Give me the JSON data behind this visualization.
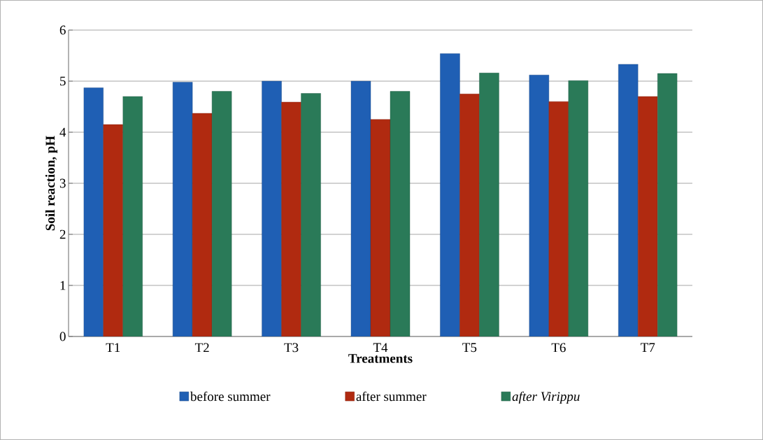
{
  "chart_data": {
    "type": "bar",
    "xlabel": "Treatments",
    "ylabel": "Soil reaction, pH",
    "categories": [
      "T1",
      "T2",
      "T3",
      "T4",
      "T5",
      "T6",
      "T7"
    ],
    "series": [
      {
        "name": "before summer",
        "color": "#1f5fb4",
        "values": [
          4.87,
          4.98,
          5.0,
          5.0,
          5.54,
          5.12,
          5.33
        ]
      },
      {
        "name": "after summer",
        "color": "#b02a10",
        "values": [
          4.15,
          4.37,
          4.59,
          4.25,
          4.75,
          4.6,
          4.7
        ]
      },
      {
        "name": "after Virippu",
        "color": "#2a7a58",
        "values": [
          4.7,
          4.8,
          4.76,
          4.8,
          5.16,
          5.01,
          5.15
        ]
      }
    ],
    "ylim": [
      0,
      6
    ],
    "yticks": [
      0,
      1,
      2,
      3,
      4,
      5,
      6
    ],
    "grid": "y",
    "legend": "bottom"
  }
}
